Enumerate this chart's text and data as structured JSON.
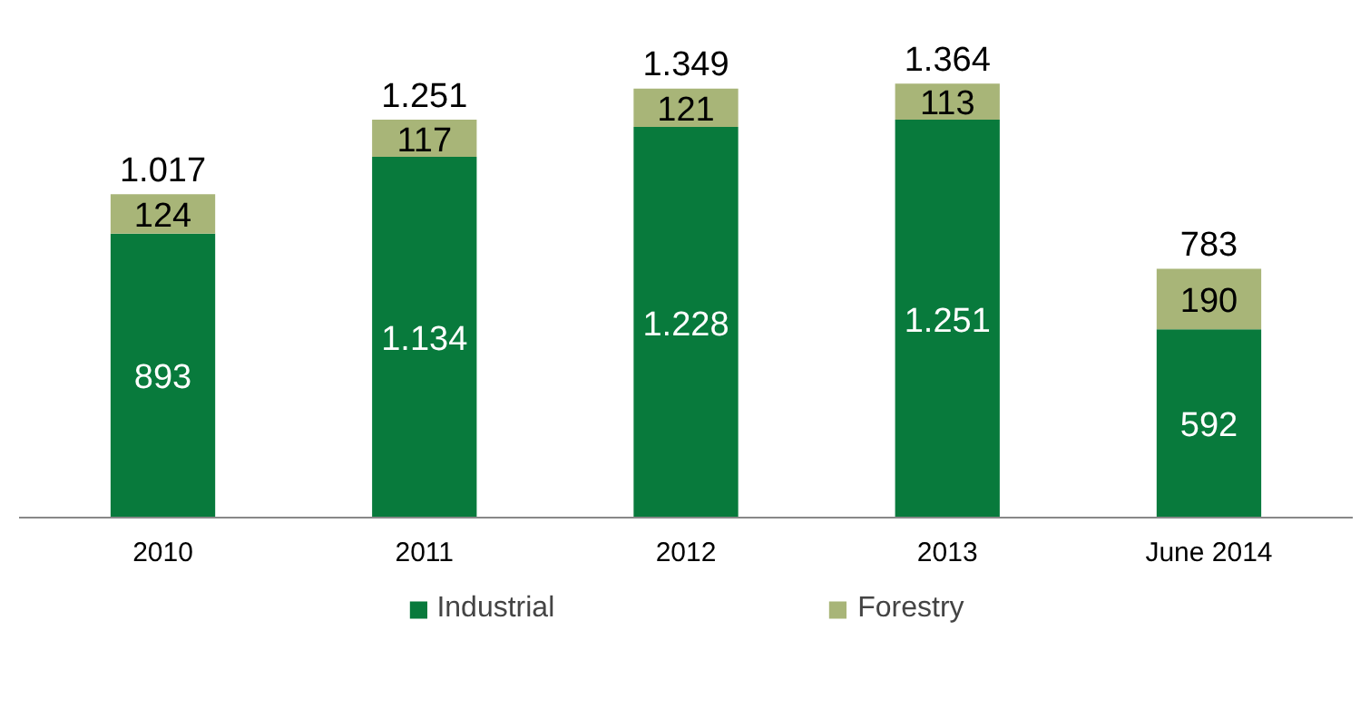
{
  "chart_data": {
    "type": "bar",
    "stacked": true,
    "categories": [
      "2010",
      "2011",
      "2012",
      "2013",
      "June 2014"
    ],
    "series": [
      {
        "name": "Industrial",
        "color": "#087a3c",
        "values": [
          893,
          1134,
          1228,
          1251,
          592
        ],
        "value_labels": [
          "893",
          "1.134",
          "1.228",
          "1.251",
          "592"
        ]
      },
      {
        "name": "Forestry",
        "color": "#a8b578",
        "values": [
          124,
          117,
          121,
          113,
          190
        ],
        "value_labels": [
          "124",
          "117",
          "121",
          "113",
          "190"
        ]
      }
    ],
    "totals": [
      "1.017",
      "1.251",
      "1.349",
      "1.364",
      "783"
    ],
    "legend": "bottom"
  }
}
